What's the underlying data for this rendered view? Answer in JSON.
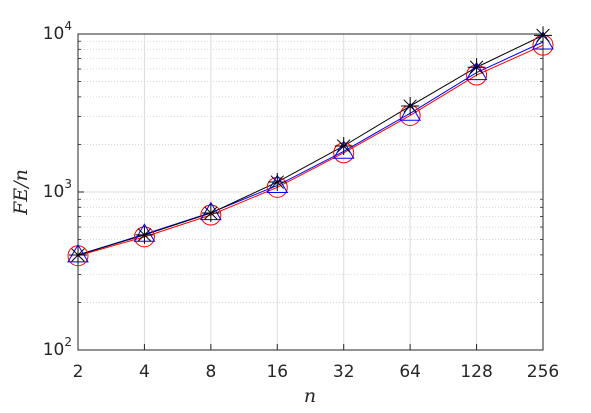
{
  "chart_data": {
    "type": "line",
    "xlabel": "n",
    "ylabel": "FE/n",
    "x": [
      2,
      4,
      8,
      16,
      32,
      64,
      128,
      256
    ],
    "series": [
      {
        "color": "#ff0000",
        "marker": "circle",
        "values": [
          395,
          520,
          715,
          1070,
          1770,
          3050,
          5500,
          8500
        ]
      },
      {
        "color": "#0000ff",
        "marker": "triangle",
        "values": [
          400,
          540,
          740,
          1100,
          1810,
          3150,
          5700,
          8900
        ]
      },
      {
        "color": "#000000",
        "marker": "asterisk",
        "values": [
          399,
          535,
          736,
          1156,
          1955,
          3500,
          6160,
          9800
        ]
      }
    ],
    "xscale": "log",
    "yscale": "log",
    "xlim": [
      2,
      256
    ],
    "ylim": [
      100,
      10000
    ],
    "xticks": [
      2,
      4,
      8,
      16,
      32,
      64,
      128,
      256
    ],
    "yticks": [
      {
        "value": 100,
        "label": "10^2"
      },
      {
        "value": 1000,
        "label": "10^3"
      },
      {
        "value": 10000,
        "label": "10^4"
      }
    ],
    "grid": true
  }
}
